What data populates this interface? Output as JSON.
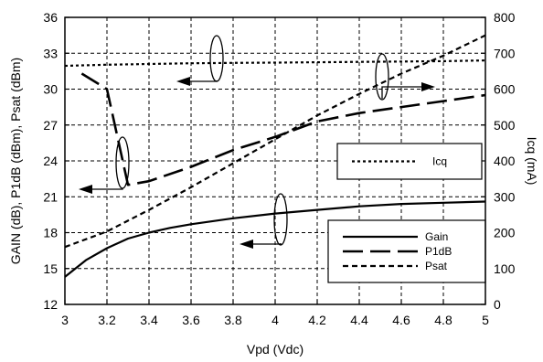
{
  "chart_data": {
    "type": "line",
    "xlabel": "Vpd (Vdc)",
    "ylabel_left": "GAIN (dB), P1dB (dBm), Psat (dBm)",
    "ylabel_right": "Icq (mA)",
    "xlim": [
      3,
      5
    ],
    "ylim_left": [
      12,
      36
    ],
    "ylim_right": [
      0,
      800
    ],
    "x_ticks": [
      "3",
      "3.2",
      "3.4",
      "3.6",
      "3.8",
      "4",
      "4.2",
      "4.4",
      "4.6",
      "4.8",
      "5"
    ],
    "y_left_ticks": [
      "12",
      "15",
      "18",
      "21",
      "24",
      "27",
      "30",
      "33",
      "36"
    ],
    "y_right_ticks": [
      "0",
      "100",
      "200",
      "300",
      "400",
      "500",
      "600",
      "700",
      "800"
    ],
    "grid": true,
    "series": [
      {
        "name": "Gain",
        "axis": "left",
        "style": "solid",
        "x": [
          3.0,
          3.1,
          3.2,
          3.3,
          3.4,
          3.5,
          3.6,
          3.8,
          4.0,
          4.2,
          4.4,
          4.6,
          4.8,
          5.0
        ],
        "y": [
          14.3,
          15.7,
          16.7,
          17.5,
          18.0,
          18.4,
          18.7,
          19.2,
          19.6,
          19.9,
          20.2,
          20.4,
          20.5,
          20.6
        ]
      },
      {
        "name": "P1dB",
        "axis": "left",
        "style": "long-dash",
        "x": [
          3.08,
          3.2,
          3.3,
          3.4,
          3.6,
          3.8,
          4.0,
          4.2,
          4.4,
          4.6,
          4.8,
          5.0
        ],
        "y": [
          31.3,
          30.0,
          22.0,
          22.3,
          23.5,
          24.9,
          26.0,
          27.3,
          28.0,
          28.5,
          29.0,
          29.5
        ]
      },
      {
        "name": "Psat",
        "axis": "left",
        "style": "short-dash",
        "x": [
          3.0,
          3.2,
          3.4,
          3.6,
          3.8,
          4.0,
          4.2,
          4.4,
          4.6,
          4.8,
          5.0
        ],
        "y": [
          16.8,
          18.1,
          19.9,
          21.8,
          23.8,
          25.8,
          27.8,
          29.6,
          31.3,
          32.8,
          34.5
        ]
      },
      {
        "name": "Icq",
        "axis": "right",
        "style": "dotted",
        "x": [
          3.0,
          3.2,
          3.4,
          3.6,
          3.8,
          4.0,
          4.2,
          4.4,
          4.6,
          4.8,
          5.0
        ],
        "y": [
          665,
          668,
          670,
          672,
          673,
          674,
          675,
          676,
          677,
          678,
          680
        ]
      }
    ],
    "legends": [
      {
        "entries": [
          "Icq"
        ]
      },
      {
        "entries": [
          "Gain",
          "P1dB",
          "Psat"
        ]
      }
    ]
  }
}
